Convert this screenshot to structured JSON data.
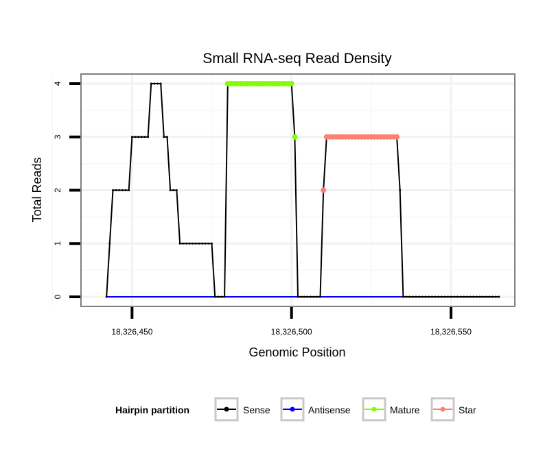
{
  "chart_data": {
    "type": "line",
    "title": "Small RNA-seq Read Density",
    "xlabel": "Genomic Position",
    "ylabel": "Total Reads",
    "xlim": [
      18326434,
      18326570
    ],
    "ylim": [
      -0.18,
      4.18
    ],
    "x_ticks": [
      18326450,
      18326500,
      18326550
    ],
    "x_tick_labels": [
      "18,326,450",
      "18,326,500",
      "18,326,550"
    ],
    "y_ticks": [
      0,
      1,
      2,
      3,
      4
    ],
    "y_tick_labels": [
      "0",
      "1",
      "2",
      "3",
      "4"
    ],
    "grid": true,
    "legend": {
      "title": "Hairpin partition",
      "position": "bottom",
      "entries": [
        {
          "label": "Sense",
          "color": "#000000"
        },
        {
          "label": "Antisense",
          "color": "#0000ff"
        },
        {
          "label": "Mature",
          "color": "#7fff00"
        },
        {
          "label": "Star",
          "color": "#fa8072"
        }
      ]
    },
    "series": [
      {
        "name": "Sense",
        "color": "#000000",
        "points": [
          [
            18326442,
            0
          ],
          [
            18326443,
            1
          ],
          [
            18326444,
            2
          ],
          [
            18326445,
            2
          ],
          [
            18326446,
            2
          ],
          [
            18326447,
            2
          ],
          [
            18326448,
            2
          ],
          [
            18326449,
            2
          ],
          [
            18326450,
            3
          ],
          [
            18326451,
            3
          ],
          [
            18326452,
            3
          ],
          [
            18326453,
            3
          ],
          [
            18326454,
            3
          ],
          [
            18326455,
            3
          ],
          [
            18326456,
            4
          ],
          [
            18326457,
            4
          ],
          [
            18326458,
            4
          ],
          [
            18326459,
            4
          ],
          [
            18326460,
            3
          ],
          [
            18326461,
            3
          ],
          [
            18326462,
            2
          ],
          [
            18326463,
            2
          ],
          [
            18326464,
            2
          ],
          [
            18326465,
            1
          ],
          [
            18326466,
            1
          ],
          [
            18326467,
            1
          ],
          [
            18326468,
            1
          ],
          [
            18326469,
            1
          ],
          [
            18326470,
            1
          ],
          [
            18326471,
            1
          ],
          [
            18326472,
            1
          ],
          [
            18326473,
            1
          ],
          [
            18326474,
            1
          ],
          [
            18326475,
            1
          ],
          [
            18326476,
            0
          ],
          [
            18326477,
            0
          ],
          [
            18326478,
            0
          ],
          [
            18326479,
            0
          ],
          [
            18326480,
            4
          ],
          [
            18326481,
            4
          ],
          [
            18326482,
            4
          ],
          [
            18326483,
            4
          ],
          [
            18326484,
            4
          ],
          [
            18326485,
            4
          ],
          [
            18326486,
            4
          ],
          [
            18326487,
            4
          ],
          [
            18326488,
            4
          ],
          [
            18326489,
            4
          ],
          [
            18326490,
            4
          ],
          [
            18326491,
            4
          ],
          [
            18326492,
            4
          ],
          [
            18326493,
            4
          ],
          [
            18326494,
            4
          ],
          [
            18326495,
            4
          ],
          [
            18326496,
            4
          ],
          [
            18326497,
            4
          ],
          [
            18326498,
            4
          ],
          [
            18326499,
            4
          ],
          [
            18326500,
            4
          ],
          [
            18326501,
            3
          ],
          [
            18326502,
            0
          ],
          [
            18326503,
            0
          ],
          [
            18326504,
            0
          ],
          [
            18326505,
            0
          ],
          [
            18326506,
            0
          ],
          [
            18326507,
            0
          ],
          [
            18326508,
            0
          ],
          [
            18326509,
            0
          ],
          [
            18326510,
            2
          ],
          [
            18326511,
            3
          ],
          [
            18326512,
            3
          ],
          [
            18326513,
            3
          ],
          [
            18326514,
            3
          ],
          [
            18326515,
            3
          ],
          [
            18326516,
            3
          ],
          [
            18326517,
            3
          ],
          [
            18326518,
            3
          ],
          [
            18326519,
            3
          ],
          [
            18326520,
            3
          ],
          [
            18326521,
            3
          ],
          [
            18326522,
            3
          ],
          [
            18326523,
            3
          ],
          [
            18326524,
            3
          ],
          [
            18326525,
            3
          ],
          [
            18326526,
            3
          ],
          [
            18326527,
            3
          ],
          [
            18326528,
            3
          ],
          [
            18326529,
            3
          ],
          [
            18326530,
            3
          ],
          [
            18326531,
            3
          ],
          [
            18326532,
            3
          ],
          [
            18326533,
            3
          ],
          [
            18326534,
            2
          ],
          [
            18326535,
            0
          ],
          [
            18326536,
            0
          ],
          [
            18326537,
            0
          ],
          [
            18326538,
            0
          ],
          [
            18326539,
            0
          ],
          [
            18326540,
            0
          ],
          [
            18326541,
            0
          ],
          [
            18326542,
            0
          ],
          [
            18326543,
            0
          ],
          [
            18326544,
            0
          ],
          [
            18326545,
            0
          ],
          [
            18326546,
            0
          ],
          [
            18326547,
            0
          ],
          [
            18326548,
            0
          ],
          [
            18326549,
            0
          ],
          [
            18326550,
            0
          ],
          [
            18326551,
            0
          ],
          [
            18326552,
            0
          ],
          [
            18326553,
            0
          ],
          [
            18326554,
            0
          ],
          [
            18326555,
            0
          ],
          [
            18326556,
            0
          ],
          [
            18326557,
            0
          ],
          [
            18326558,
            0
          ],
          [
            18326559,
            0
          ],
          [
            18326560,
            0
          ],
          [
            18326561,
            0
          ],
          [
            18326562,
            0
          ],
          [
            18326563,
            0
          ],
          [
            18326564,
            0
          ],
          [
            18326565,
            0
          ]
        ]
      },
      {
        "name": "Antisense",
        "color": "#0000ff",
        "points": [
          [
            18326442,
            0
          ],
          [
            18326535,
            0
          ]
        ]
      },
      {
        "name": "Mature",
        "color": "#7fff00",
        "points": [
          [
            18326480,
            4
          ],
          [
            18326481,
            4
          ],
          [
            18326482,
            4
          ],
          [
            18326483,
            4
          ],
          [
            18326484,
            4
          ],
          [
            18326485,
            4
          ],
          [
            18326486,
            4
          ],
          [
            18326487,
            4
          ],
          [
            18326488,
            4
          ],
          [
            18326489,
            4
          ],
          [
            18326490,
            4
          ],
          [
            18326491,
            4
          ],
          [
            18326492,
            4
          ],
          [
            18326493,
            4
          ],
          [
            18326494,
            4
          ],
          [
            18326495,
            4
          ],
          [
            18326496,
            4
          ],
          [
            18326497,
            4
          ],
          [
            18326498,
            4
          ],
          [
            18326499,
            4
          ],
          [
            18326500,
            4
          ],
          [
            18326501,
            3
          ]
        ]
      },
      {
        "name": "Star",
        "color": "#fa8072",
        "points": [
          [
            18326510,
            2
          ],
          [
            18326511,
            3
          ],
          [
            18326512,
            3
          ],
          [
            18326513,
            3
          ],
          [
            18326514,
            3
          ],
          [
            18326515,
            3
          ],
          [
            18326516,
            3
          ],
          [
            18326517,
            3
          ],
          [
            18326518,
            3
          ],
          [
            18326519,
            3
          ],
          [
            18326520,
            3
          ],
          [
            18326521,
            3
          ],
          [
            18326522,
            3
          ],
          [
            18326523,
            3
          ],
          [
            18326524,
            3
          ],
          [
            18326525,
            3
          ],
          [
            18326526,
            3
          ],
          [
            18326527,
            3
          ],
          [
            18326528,
            3
          ],
          [
            18326529,
            3
          ],
          [
            18326530,
            3
          ],
          [
            18326531,
            3
          ],
          [
            18326532,
            3
          ],
          [
            18326533,
            3
          ]
        ]
      }
    ]
  }
}
